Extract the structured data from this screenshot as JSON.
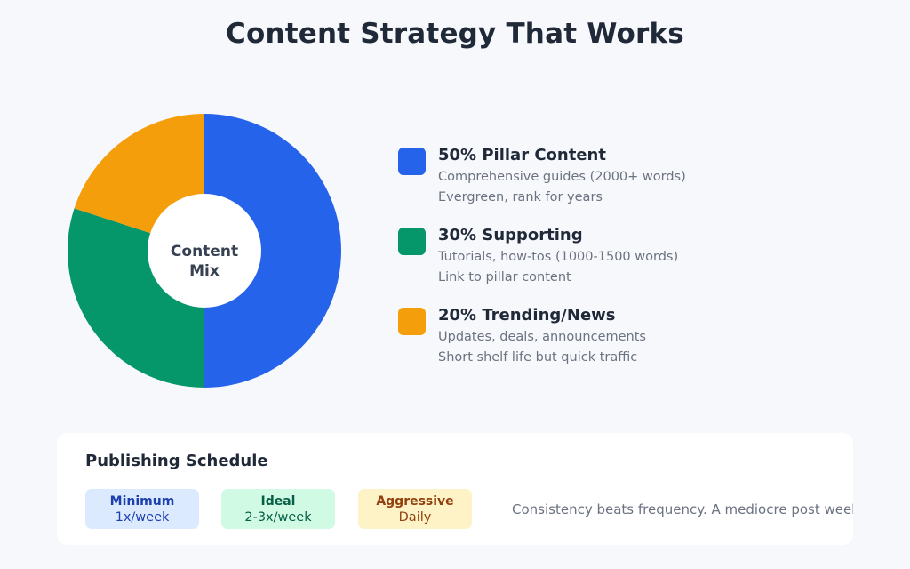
{
  "title": "Content Strategy That Works",
  "chart_data": {
    "type": "pie",
    "center_label": [
      "Content",
      "Mix"
    ],
    "slices": [
      {
        "label": "Pillar Content",
        "value": 50,
        "color": "#2563eb"
      },
      {
        "label": "Supporting",
        "value": 30,
        "color": "#059669"
      },
      {
        "label": "Trending/News",
        "value": 20,
        "color": "#f59e0b"
      }
    ]
  },
  "legend": [
    {
      "title": "50% Pillar Content",
      "line1": "Comprehensive guides (2000+ words)",
      "line2": "Evergreen, rank for years",
      "color": "#2563eb"
    },
    {
      "title": "30% Supporting",
      "line1": "Tutorials, how-tos (1000-1500 words)",
      "line2": "Link to pillar content",
      "color": "#059669"
    },
    {
      "title": "20% Trending/News",
      "line1": "Updates, deals, announcements",
      "line2": "Short shelf life but quick traffic",
      "color": "#f59e0b"
    }
  ],
  "schedule": {
    "title": "Publishing Schedule",
    "options": [
      {
        "label": "Minimum",
        "value": "1x/week"
      },
      {
        "label": "Ideal",
        "value": "2-3x/week"
      },
      {
        "label": "Aggressive",
        "value": "Daily"
      }
    ],
    "note": "Consistency beats frequency. A mediocre post weekly beats"
  }
}
